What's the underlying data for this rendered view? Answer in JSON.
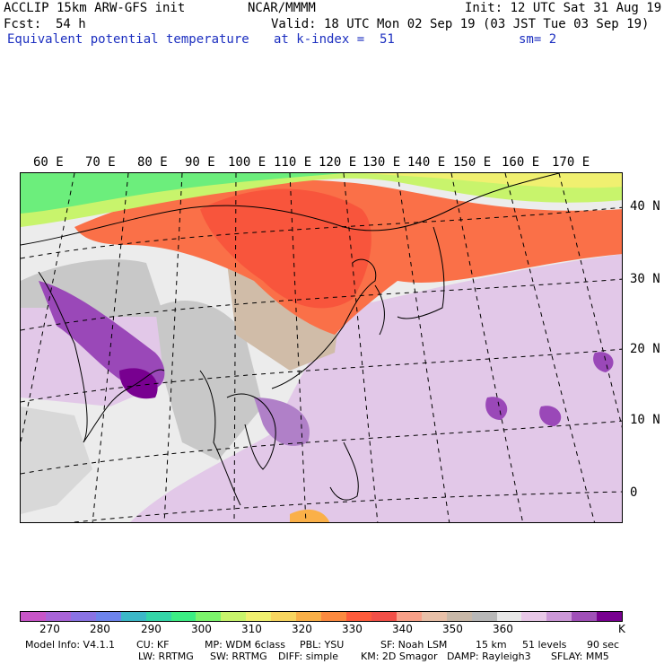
{
  "header": {
    "model": "ACCLIP 15km ARW-GFS init",
    "org": "NCAR/MMMM",
    "init": "Init: 12 UTC Sat 31 Aug 19",
    "fcst_label": "Fcst:",
    "fcst_value": "54 h",
    "valid": "Valid: 18 UTC Mon 02 Sep 19 (03 JST Tue 03 Sep 19)",
    "field": "Equivalent potential temperature",
    "level": "at k-index =  51",
    "smooth": "sm= 2"
  },
  "lon_labels": [
    "60 E",
    "70 E",
    "80 E",
    "90 E",
    "100 E",
    "110 E",
    "120 E",
    "130 E",
    "140 E",
    "150 E",
    "160 E",
    "170 E"
  ],
  "lat_labels": [
    "40 N",
    "30 N",
    "20 N",
    "10 N",
    "0"
  ],
  "colorbar": {
    "colors": [
      "#c855c8",
      "#a964d8",
      "#8a73e4",
      "#6d84ec",
      "#3cb8c8",
      "#34d6a8",
      "#3cee84",
      "#7cf46c",
      "#c8f46c",
      "#f0f070",
      "#f8d660",
      "#fab048",
      "#fc8a40",
      "#fe5c3c",
      "#f25048",
      "#f8a088",
      "#e8c0a8",
      "#c8b8a8",
      "#b8b8b8",
      "#e8e8e8",
      "#e8c8e8",
      "#cc98d8",
      "#a050b8",
      "#780090"
    ],
    "tick_labels": [
      "270",
      "280",
      "290",
      "300",
      "310",
      "320",
      "330",
      "340",
      "350",
      "360"
    ],
    "unit": "K"
  },
  "footer": {
    "line1": [
      "Model Info: V4.1.1",
      "CU: KF",
      "MP: WDM 6class",
      "PBL: YSU",
      "SF: Noah LSM",
      "15 km",
      "51 levels",
      "90 sec"
    ],
    "line2": [
      "LW: RRTMG",
      "SW: RRTMG",
      "DIFF: simple",
      "KM: 2D Smagor",
      "DAMP: Rayleigh3",
      "SFLAY: MM5"
    ]
  }
}
